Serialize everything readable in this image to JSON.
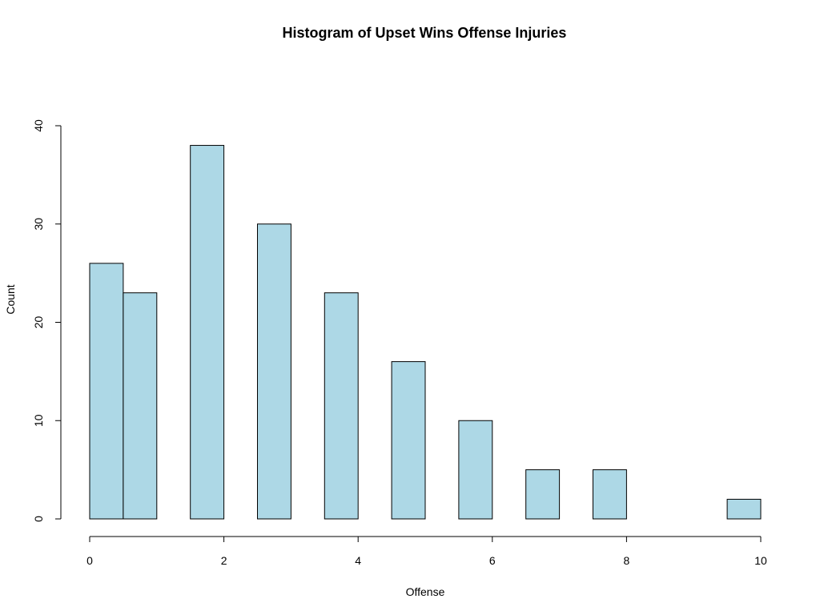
{
  "chart_data": {
    "type": "bar",
    "title": "Histogram of Upset Wins Offense Injuries",
    "xlabel": "Offense",
    "ylabel": "Count",
    "bins": [
      {
        "x0": 0,
        "x1": 0.5,
        "count": 26
      },
      {
        "x0": 0.5,
        "x1": 1,
        "count": 23
      },
      {
        "x0": 1.5,
        "x1": 2,
        "count": 38
      },
      {
        "x0": 2.5,
        "x1": 3,
        "count": 30
      },
      {
        "x0": 3.5,
        "x1": 4,
        "count": 23
      },
      {
        "x0": 4.5,
        "x1": 5,
        "count": 16
      },
      {
        "x0": 5.5,
        "x1": 6,
        "count": 10
      },
      {
        "x0": 6.5,
        "x1": 7,
        "count": 5
      },
      {
        "x0": 7.5,
        "x1": 8,
        "count": 5
      },
      {
        "x0": 9.5,
        "x1": 10,
        "count": 2
      }
    ],
    "xlim": [
      0,
      10
    ],
    "ylim": [
      0,
      40
    ],
    "xticks": [
      "0",
      "2",
      "4",
      "6",
      "8",
      "10"
    ],
    "yticks": [
      "0",
      "10",
      "20",
      "30",
      "40"
    ],
    "bar_color": "#add8e6",
    "grid": false,
    "legend": "none"
  }
}
